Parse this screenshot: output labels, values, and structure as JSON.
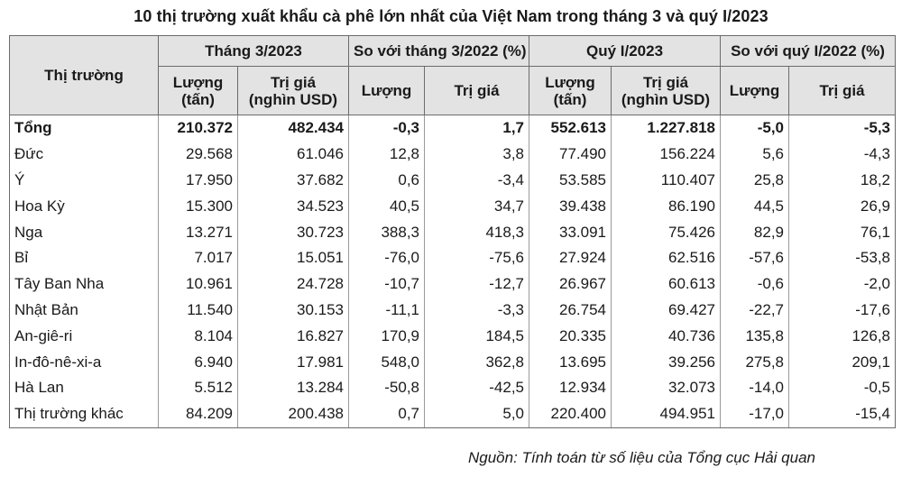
{
  "title": "10 thị trường xuất khẩu cà phê lớn nhất của Việt Nam trong tháng 3 và quý I/2023",
  "header": {
    "market": "Thị trường",
    "groups": [
      "Tháng 3/2023",
      "So với tháng 3/2022 (%)",
      "Quý I/2023",
      "So với quý I/2022 (%)"
    ],
    "volume_unit": "Lượng (tấn)",
    "value_unit": "Trị giá (nghìn USD)",
    "volume": "Lượng",
    "value": "Trị giá"
  },
  "rows": [
    {
      "name": "Tổng",
      "c": [
        "210.372",
        "482.434",
        "-0,3",
        "1,7",
        "552.613",
        "1.227.818",
        "-5,0",
        "-5,3"
      ]
    },
    {
      "name": "Đức",
      "c": [
        "29.568",
        "61.046",
        "12,8",
        "3,8",
        "77.490",
        "156.224",
        "5,6",
        "-4,3"
      ]
    },
    {
      "name": "Ý",
      "c": [
        "17.950",
        "37.682",
        "0,6",
        "-3,4",
        "53.585",
        "110.407",
        "25,8",
        "18,2"
      ]
    },
    {
      "name": "Hoa Kỳ",
      "c": [
        "15.300",
        "34.523",
        "40,5",
        "34,7",
        "39.438",
        "86.190",
        "44,5",
        "26,9"
      ]
    },
    {
      "name": "Nga",
      "c": [
        "13.271",
        "30.723",
        "388,3",
        "418,3",
        "33.091",
        "75.426",
        "82,9",
        "76,1"
      ]
    },
    {
      "name": "Bỉ",
      "c": [
        "7.017",
        "15.051",
        "-76,0",
        "-75,6",
        "27.924",
        "62.516",
        "-57,6",
        "-53,8"
      ]
    },
    {
      "name": "Tây Ban Nha",
      "c": [
        "10.961",
        "24.728",
        "-10,7",
        "-12,7",
        "26.967",
        "60.613",
        "-0,6",
        "-2,0"
      ]
    },
    {
      "name": "Nhật Bản",
      "c": [
        "11.540",
        "30.153",
        "-11,1",
        "-3,3",
        "26.754",
        "69.427",
        "-22,7",
        "-17,6"
      ]
    },
    {
      "name": "An-giê-ri",
      "c": [
        "8.104",
        "16.827",
        "170,9",
        "184,5",
        "20.335",
        "40.736",
        "135,8",
        "126,8"
      ]
    },
    {
      "name": "In-đô-nê-xi-a",
      "c": [
        "6.940",
        "17.981",
        "548,0",
        "362,8",
        "13.695",
        "39.256",
        "275,8",
        "209,1"
      ]
    },
    {
      "name": "Hà Lan",
      "c": [
        "5.512",
        "13.284",
        "-50,8",
        "-42,5",
        "12.934",
        "32.073",
        "-14,0",
        "-0,5"
      ]
    },
    {
      "name": "Thị trường khác",
      "c": [
        "84.209",
        "200.438",
        "0,7",
        "5,0",
        "220.400",
        "494.951",
        "-17,0",
        "-15,4"
      ]
    }
  ],
  "source": "Nguồn: Tính toán từ số liệu của Tổng cục Hải quan"
}
